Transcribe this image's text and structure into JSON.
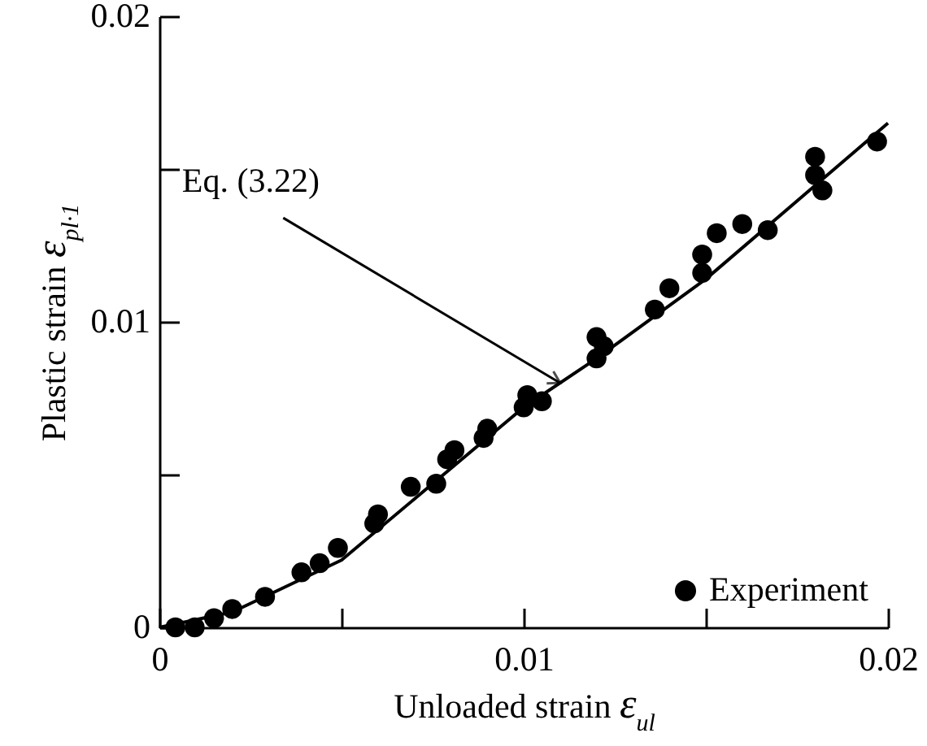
{
  "chart_data": {
    "type": "scatter",
    "xlabel": "Unloaded strain  ε$_{ul}$",
    "ylabel": "Plastic strain  ε$_{pl·1}$",
    "xlim": [
      0,
      0.02
    ],
    "ylim": [
      0,
      0.02
    ],
    "xticks": [
      0,
      {
        "value": 0.005,
        "label": null
      },
      0.01,
      {
        "value": 0.015,
        "label": null
      },
      0.02
    ],
    "yticks": [
      0,
      {
        "value": 0.005,
        "label": null
      },
      0.01,
      {
        "value": 0.015,
        "label": null
      },
      0.02
    ],
    "grid": false,
    "legend": "bottom right",
    "marker": "circle",
    "annotations": [
      {
        "text": "Eq. (3.22)",
        "x": 0.011,
        "y": 0.008
      }
    ],
    "series": [
      {
        "type": "line",
        "color": "#000000",
        "line_style": "solid",
        "marker": "none",
        "x": [
          0,
          0.002,
          0.005,
          0.008,
          0.01,
          0.012,
          0.015,
          0.02
        ],
        "values": [
          0,
          0.0005,
          0.0022,
          0.0052,
          0.0072,
          0.0088,
          0.0114,
          0.0165
        ]
      },
      {
        "name": "Experiment",
        "color": "#000000",
        "x": [
          0.00044,
          0.00097,
          0.0015,
          0.002,
          0.0029,
          0.0039,
          0.0044,
          0.0049,
          0.0059,
          0.006,
          0.0069,
          0.0076,
          0.0079,
          0.0081,
          0.0089,
          0.009,
          0.0101,
          0.01,
          0.0105,
          0.012,
          0.012,
          0.0122,
          0.0136,
          0.014,
          0.0149,
          0.0149,
          0.0153,
          0.016,
          0.0167,
          0.018,
          0.018,
          0.0182,
          0.0197
        ],
        "values": [
          0,
          0,
          0.0003,
          0.0006,
          0.001,
          0.0018,
          0.0021,
          0.0026,
          0.0034,
          0.0037,
          0.0046,
          0.0047,
          0.0055,
          0.0058,
          0.0062,
          0.0065,
          0.0076,
          0.0072,
          0.0074,
          0.0095,
          0.0088,
          0.0092,
          0.0104,
          0.0111,
          0.0122,
          0.0116,
          0.0129,
          0.0132,
          0.013,
          0.0154,
          0.0148,
          0.0143,
          0.0159
        ]
      }
    ]
  }
}
